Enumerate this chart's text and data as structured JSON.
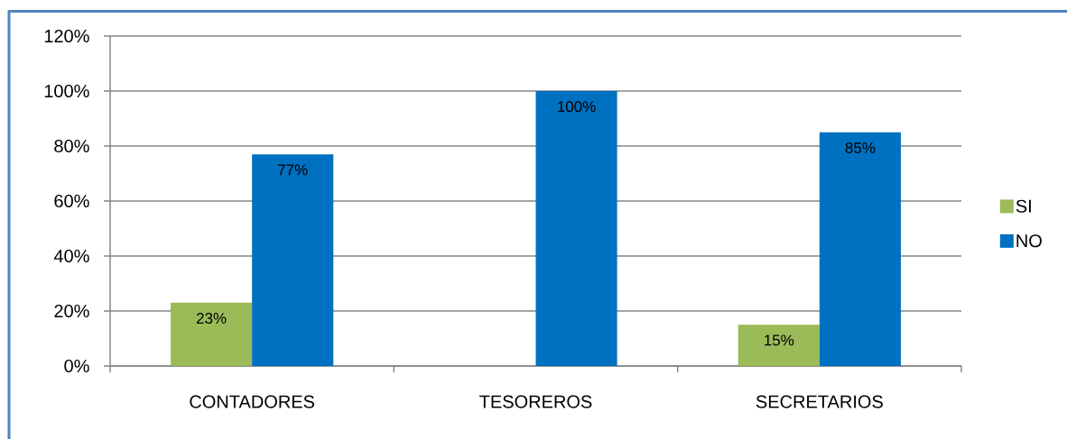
{
  "chart_data": {
    "type": "bar",
    "categories": [
      "CONTADORES",
      "TESOREROS",
      "SECRETARIOS"
    ],
    "series": [
      {
        "name": "SI",
        "color": "#9bbb59",
        "values": [
          23,
          null,
          15
        ],
        "value_labels": [
          "23%",
          null,
          "15%"
        ]
      },
      {
        "name": "NO",
        "color": "#0070c0",
        "values": [
          77,
          100,
          85
        ],
        "value_labels": [
          "77%",
          "100%",
          "85%"
        ]
      }
    ],
    "ylim": [
      0,
      120
    ],
    "yticks": [
      {
        "value": 0,
        "label": "0%"
      },
      {
        "value": 20,
        "label": "20%"
      },
      {
        "value": 40,
        "label": "40%"
      },
      {
        "value": 60,
        "label": "60%"
      },
      {
        "value": 80,
        "label": "80%"
      },
      {
        "value": 100,
        "label": "100%"
      },
      {
        "value": 120,
        "label": "120%"
      }
    ],
    "grid": "y",
    "legend": "right"
  }
}
